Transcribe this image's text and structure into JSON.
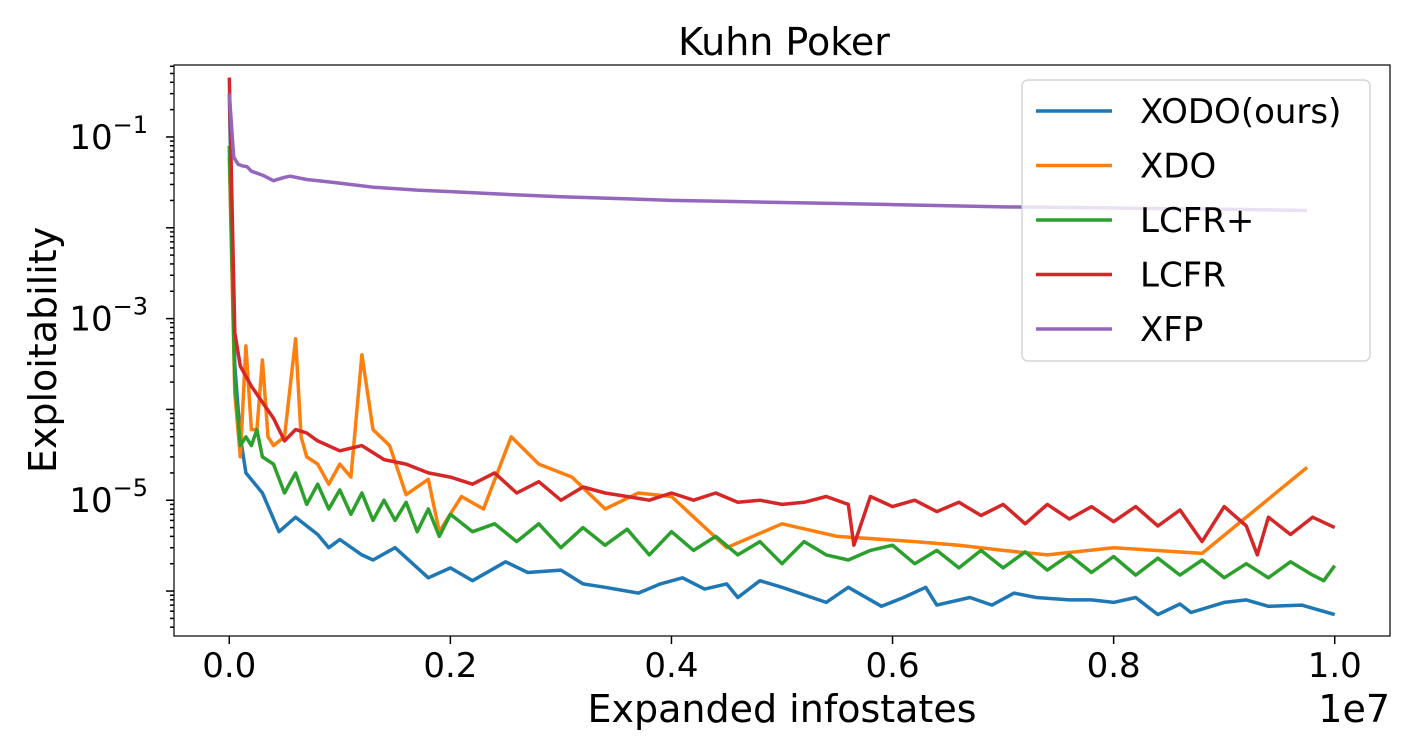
{
  "chart_data": {
    "type": "line",
    "title": "Kuhn Poker",
    "xlabel": "Expanded infostates",
    "ylabel": "Exploitability",
    "x_offset_label": "1e7",
    "xlim": [
      -0.05,
      1.05
    ],
    "ylim": [
      3.2e-07,
      0.62
    ],
    "yscale": "log",
    "x_ticks": [
      0.0,
      0.2,
      0.4,
      0.6,
      0.8,
      1.0
    ],
    "x_tick_labels": [
      "0.0",
      "0.2",
      "0.4",
      "0.6",
      "0.8",
      "1.0"
    ],
    "y_ticks": [
      {
        "value": 0.1,
        "base": "10",
        "exp": "−1"
      },
      {
        "value": 0.001,
        "base": "10",
        "exp": "−3"
      },
      {
        "value": 1e-05,
        "base": "10",
        "exp": "−5"
      }
    ],
    "grid": false,
    "legend": "top-right",
    "series": [
      {
        "name": "XODO(ours)",
        "color": "#1f77b4",
        "x": [
          0.0,
          0.005,
          0.01,
          0.015,
          0.03,
          0.045,
          0.06,
          0.08,
          0.09,
          0.1,
          0.12,
          0.13,
          0.15,
          0.18,
          0.2,
          0.22,
          0.25,
          0.27,
          0.3,
          0.32,
          0.34,
          0.37,
          0.39,
          0.41,
          0.43,
          0.45,
          0.46,
          0.48,
          0.5,
          0.54,
          0.56,
          0.59,
          0.61,
          0.63,
          0.64,
          0.67,
          0.69,
          0.71,
          0.73,
          0.76,
          0.78,
          0.8,
          0.82,
          0.84,
          0.86,
          0.87,
          0.9,
          0.92,
          0.94,
          0.97,
          1.0
        ],
        "y": [
          0.3,
          0.0003,
          5e-05,
          2e-05,
          1.2e-05,
          4.5e-06,
          6.5e-06,
          4.2e-06,
          3e-06,
          3.7e-06,
          2.5e-06,
          2.2e-06,
          3e-06,
          1.4e-06,
          1.8e-06,
          1.3e-06,
          2.1e-06,
          1.6e-06,
          1.7e-06,
          1.2e-06,
          1.1e-06,
          9.5e-07,
          1.2e-06,
          1.4e-06,
          1.05e-06,
          1.2e-06,
          8.5e-07,
          1.3e-06,
          1.1e-06,
          7.5e-07,
          1.1e-06,
          6.8e-07,
          8.5e-07,
          1.1e-06,
          7e-07,
          8.5e-07,
          7e-07,
          9.5e-07,
          8.5e-07,
          8e-07,
          8e-07,
          7.5e-07,
          8.5e-07,
          5.5e-07,
          7.2e-07,
          5.8e-07,
          7.5e-07,
          8e-07,
          6.8e-07,
          7e-07,
          5.5e-07
        ]
      },
      {
        "name": "XDO",
        "color": "#ff7f0e",
        "x": [
          0.0,
          0.005,
          0.01,
          0.015,
          0.02,
          0.025,
          0.03,
          0.035,
          0.04,
          0.05,
          0.06,
          0.065,
          0.07,
          0.08,
          0.09,
          0.1,
          0.11,
          0.12,
          0.13,
          0.145,
          0.16,
          0.18,
          0.19,
          0.21,
          0.23,
          0.255,
          0.28,
          0.31,
          0.34,
          0.37,
          0.4,
          0.45,
          0.5,
          0.55,
          0.62,
          0.66,
          0.7,
          0.74,
          0.8,
          0.88,
          0.975
        ],
        "y": [
          0.06,
          0.00015,
          3e-05,
          0.0005,
          6e-05,
          6e-05,
          0.00035,
          5e-05,
          4e-05,
          5e-05,
          0.0006,
          5e-05,
          3e-05,
          2.5e-05,
          1.5e-05,
          2.5e-05,
          1.8e-05,
          0.0004,
          6e-05,
          4e-05,
          1.15e-05,
          1.7e-05,
          4.5e-06,
          1.1e-05,
          8e-06,
          5e-05,
          2.5e-05,
          1.8e-05,
          8e-06,
          1.2e-05,
          1.1e-05,
          3e-06,
          5.5e-06,
          4e-06,
          3.5e-06,
          3.2e-06,
          2.8e-06,
          2.5e-06,
          3e-06,
          2.6e-06,
          2.3e-05
        ]
      },
      {
        "name": "LCFR+",
        "color": "#2ca02c",
        "x": [
          0.0,
          0.005,
          0.01,
          0.015,
          0.02,
          0.025,
          0.03,
          0.04,
          0.05,
          0.06,
          0.07,
          0.08,
          0.09,
          0.1,
          0.11,
          0.12,
          0.13,
          0.14,
          0.15,
          0.16,
          0.17,
          0.18,
          0.19,
          0.2,
          0.22,
          0.24,
          0.26,
          0.28,
          0.3,
          0.32,
          0.34,
          0.36,
          0.38,
          0.4,
          0.42,
          0.44,
          0.46,
          0.48,
          0.5,
          0.52,
          0.54,
          0.56,
          0.58,
          0.6,
          0.62,
          0.64,
          0.66,
          0.68,
          0.7,
          0.72,
          0.74,
          0.76,
          0.78,
          0.8,
          0.82,
          0.84,
          0.86,
          0.88,
          0.9,
          0.92,
          0.94,
          0.96,
          0.98,
          0.99,
          1.0
        ],
        "y": [
          0.08,
          0.0002,
          4e-05,
          5e-05,
          4e-05,
          6e-05,
          3e-05,
          2.5e-05,
          1.2e-05,
          2e-05,
          9e-06,
          1.5e-05,
          8e-06,
          1.3e-05,
          7e-06,
          1.2e-05,
          6e-06,
          1e-05,
          6e-06,
          9.5e-06,
          4.5e-06,
          8e-06,
          4e-06,
          7e-06,
          4.5e-06,
          5.5e-06,
          3.5e-06,
          5.5e-06,
          3e-06,
          5e-06,
          3.2e-06,
          4.8e-06,
          2.5e-06,
          4.5e-06,
          2.8e-06,
          4e-06,
          2.5e-06,
          3.5e-06,
          2e-06,
          3.5e-06,
          2.5e-06,
          2.2e-06,
          2.8e-06,
          3.2e-06,
          2e-06,
          2.8e-06,
          1.8e-06,
          2.8e-06,
          1.8e-06,
          2.7e-06,
          1.7e-06,
          2.5e-06,
          1.6e-06,
          2.4e-06,
          1.5e-06,
          2.3e-06,
          1.5e-06,
          2.2e-06,
          1.4e-06,
          2e-06,
          1.4e-06,
          2.1e-06,
          1.5e-06,
          1.3e-06,
          1.9e-06
        ]
      },
      {
        "name": "LCFR",
        "color": "#d62728",
        "x": [
          0.0,
          0.005,
          0.01,
          0.02,
          0.03,
          0.04,
          0.05,
          0.06,
          0.07,
          0.08,
          0.1,
          0.12,
          0.14,
          0.16,
          0.18,
          0.2,
          0.22,
          0.24,
          0.26,
          0.28,
          0.3,
          0.32,
          0.34,
          0.36,
          0.38,
          0.4,
          0.42,
          0.44,
          0.46,
          0.48,
          0.5,
          0.52,
          0.54,
          0.56,
          0.565,
          0.58,
          0.6,
          0.62,
          0.64,
          0.66,
          0.68,
          0.7,
          0.72,
          0.74,
          0.76,
          0.78,
          0.8,
          0.82,
          0.84,
          0.86,
          0.88,
          0.9,
          0.92,
          0.93,
          0.94,
          0.96,
          0.98,
          1.0
        ],
        "y": [
          0.45,
          0.0007,
          0.0003,
          0.00018,
          0.00012,
          8e-05,
          4.5e-05,
          6e-05,
          5.5e-05,
          4.5e-05,
          3.5e-05,
          4e-05,
          2.8e-05,
          2.5e-05,
          2e-05,
          1.8e-05,
          1.5e-05,
          2e-05,
          1.2e-05,
          1.6e-05,
          1e-05,
          1.4e-05,
          1.2e-05,
          1.1e-05,
          1e-05,
          1.2e-05,
          1e-05,
          1.2e-05,
          9.5e-06,
          1e-05,
          9e-06,
          9.5e-06,
          1.1e-05,
          9e-06,
          3.2e-06,
          1.1e-05,
          8.5e-06,
          1e-05,
          7.5e-06,
          9.5e-06,
          6.8e-06,
          9e-06,
          5.5e-06,
          9e-06,
          6.2e-06,
          8.5e-06,
          5.8e-06,
          8.5e-06,
          5.2e-06,
          7.8e-06,
          3.5e-06,
          8.5e-06,
          5.2e-06,
          2.5e-06,
          6.5e-06,
          4.2e-06,
          6.5e-06,
          5e-06
        ]
      },
      {
        "name": "XFP",
        "color": "#9467bd",
        "x": [
          0.0,
          0.004,
          0.008,
          0.012,
          0.016,
          0.02,
          0.03,
          0.04,
          0.05,
          0.055,
          0.07,
          0.09,
          0.11,
          0.13,
          0.15,
          0.17,
          0.2,
          0.23,
          0.26,
          0.3,
          0.35,
          0.4,
          0.45,
          0.5,
          0.55,
          0.6,
          0.65,
          0.7,
          0.75,
          0.8,
          0.85,
          0.9,
          0.975
        ],
        "y": [
          0.3,
          0.06,
          0.05,
          0.048,
          0.047,
          0.042,
          0.038,
          0.033,
          0.036,
          0.037,
          0.034,
          0.032,
          0.03,
          0.028,
          0.027,
          0.026,
          0.025,
          0.024,
          0.023,
          0.022,
          0.021,
          0.02,
          0.0195,
          0.019,
          0.0185,
          0.018,
          0.0175,
          0.017,
          0.0168,
          0.0165,
          0.0162,
          0.016,
          0.0155
        ]
      }
    ]
  }
}
